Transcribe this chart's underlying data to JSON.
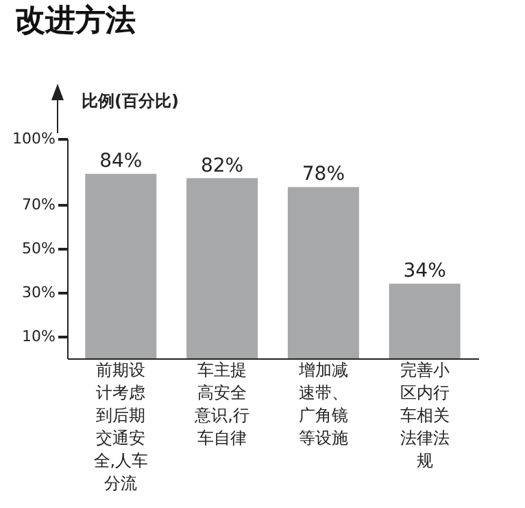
{
  "chart_data": {
    "type": "bar",
    "title": "改进方法",
    "ylabel": "比例(百分比)",
    "categories": [
      "前期设计考虑到后期交通安全,人车分流",
      "车主提高安全意识,行车自律",
      "增加减速带、广角镜等设施",
      "完善小区内行车相关法律法规"
    ],
    "values": [
      84,
      82,
      78,
      34
    ],
    "value_labels": [
      "84%",
      "82%",
      "78%",
      "34%"
    ],
    "color": "#a7a8aa",
    "ylim": [
      0,
      100
    ],
    "yticks": [
      {
        "value": 10,
        "label": "10%"
      },
      {
        "value": 30,
        "label": "30%"
      },
      {
        "value": 50,
        "label": "50%"
      },
      {
        "value": 70,
        "label": "70%"
      },
      {
        "value": 100,
        "label": "100%"
      }
    ],
    "grid": false
  }
}
